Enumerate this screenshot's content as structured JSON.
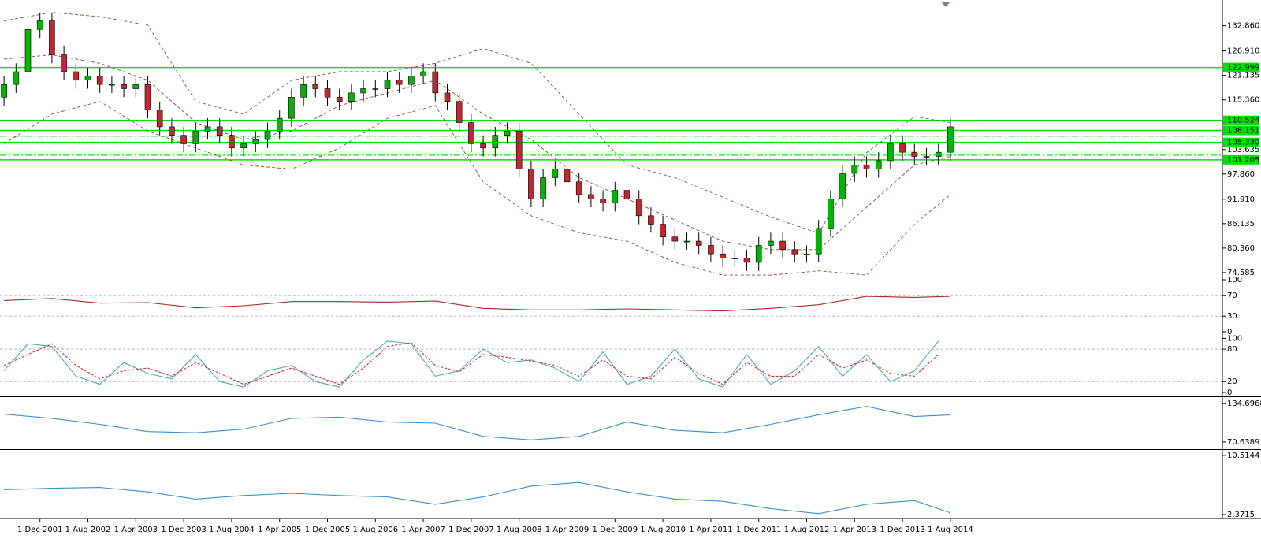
{
  "chart_data": [
    {
      "type": "candlestick",
      "categories": [
        null,
        null,
        null,
        "1 Dec 2001",
        null,
        null,
        null,
        "1 Aug 2002",
        null,
        null,
        null,
        "1 Apr 2003",
        null,
        null,
        null,
        "1 Dec 2003",
        null,
        null,
        null,
        "1 Aug 2004",
        null,
        null,
        null,
        "1 Apr 2005",
        null,
        null,
        null,
        "1 Dec 2005",
        null,
        null,
        null,
        "1 Aug 2006",
        null,
        null,
        null,
        "1 Apr 2007",
        null,
        null,
        null,
        "1 Dec 2007",
        null,
        null,
        null,
        "1 Aug 2008",
        null,
        null,
        null,
        "1 Apr 2009",
        null,
        null,
        null,
        "1 Dec 2009",
        null,
        null,
        null,
        "1 Aug 2010",
        null,
        null,
        null,
        "1 Apr 2011",
        null,
        null,
        null,
        "1 Dec 2011",
        null,
        null,
        null,
        "1 Aug 2012",
        null,
        null,
        null,
        "1 Apr 2013",
        null,
        null,
        null,
        "1 Dec 2013",
        null,
        null,
        null,
        "1 Aug 2014"
      ],
      "open": [
        116,
        119,
        122,
        132,
        134,
        126,
        122,
        120,
        121,
        119,
        119,
        118,
        119,
        113,
        109,
        107,
        105,
        108,
        109,
        107,
        104,
        105,
        106,
        108,
        111,
        116,
        119,
        118,
        116,
        115,
        117,
        118,
        118,
        120,
        119,
        121,
        122,
        117,
        115,
        110,
        105,
        104,
        107,
        108,
        99,
        92,
        97,
        99,
        96,
        93,
        92,
        91,
        94,
        92,
        88,
        86,
        83,
        82,
        82,
        81,
        79,
        78,
        78,
        77,
        81,
        82,
        80,
        79,
        79,
        85,
        92,
        98,
        100,
        99,
        101,
        105,
        103,
        102,
        102,
        103
      ],
      "high": [
        121,
        124,
        134,
        136,
        136,
        128,
        124,
        123,
        123,
        121,
        121,
        121,
        121,
        115,
        111,
        109,
        110,
        111,
        111,
        109,
        107,
        108,
        110,
        113,
        118,
        121,
        121,
        120,
        118,
        119,
        120,
        120,
        122,
        122,
        123,
        124,
        124,
        119,
        117,
        112,
        107,
        109,
        110,
        110,
        101,
        99,
        101,
        101,
        98,
        95,
        94,
        96,
        96,
        94,
        90,
        88,
        85,
        84,
        84,
        83,
        81,
        80,
        80,
        83,
        84,
        84,
        82,
        81,
        87,
        94,
        100,
        102,
        102,
        103,
        107,
        107,
        105,
        104,
        105,
        111
      ],
      "low": [
        114,
        117,
        120,
        130,
        124,
        120,
        118,
        118,
        117,
        117,
        116,
        116,
        111,
        107,
        105,
        103,
        103,
        106,
        105,
        102,
        102,
        103,
        104,
        106,
        109,
        114,
        116,
        114,
        113,
        113,
        115,
        116,
        116,
        117,
        117,
        119,
        115,
        113,
        108,
        103,
        102,
        102,
        105,
        97,
        90,
        90,
        95,
        94,
        91,
        90,
        89,
        89,
        90,
        86,
        84,
        81,
        80,
        80,
        79,
        77,
        76,
        76,
        75,
        75,
        79,
        78,
        77,
        77,
        77,
        83,
        90,
        96,
        97,
        97,
        99,
        101,
        100,
        100,
        100,
        101
      ],
      "close": [
        119,
        122,
        132,
        134,
        126,
        122,
        120,
        121,
        119,
        119,
        118,
        119,
        113,
        109,
        107,
        105,
        108,
        109,
        107,
        104,
        105,
        106,
        108,
        111,
        116,
        119,
        118,
        116,
        115,
        117,
        118,
        118,
        120,
        119,
        121,
        122,
        117,
        115,
        110,
        105,
        104,
        107,
        108,
        99,
        92,
        97,
        99,
        96,
        93,
        92,
        91,
        94,
        92,
        88,
        86,
        83,
        82,
        82,
        81,
        79,
        78,
        78,
        77,
        81,
        82,
        80,
        79,
        79,
        85,
        92,
        98,
        100,
        99,
        101,
        105,
        103,
        102,
        102,
        103,
        109
      ],
      "up_color": "#00b400",
      "down_color": "#c3262d",
      "ylim": [
        73.83,
        138.93
      ],
      "yticks": [
        {
          "value": 132.86,
          "label": "132.860"
        },
        {
          "value": 126.91,
          "label": "126.910"
        },
        121.135,
        {
          "value": 115.36,
          "label": "115.360"
        },
        103.635,
        {
          "value": 97.86,
          "label": "97.860"
        },
        {
          "value": 91.91,
          "label": "91.910"
        },
        86.135,
        {
          "value": 80.36,
          "label": "80.360"
        },
        74.585
      ],
      "bands": {
        "x": [
          0,
          4,
          8,
          12,
          16,
          20,
          24,
          28,
          32,
          36,
          40,
          44,
          48,
          52,
          56,
          60,
          64,
          68,
          72,
          76,
          79
        ],
        "upper": [
          134,
          136,
          135,
          133,
          115,
          112,
          120,
          122,
          122,
          124,
          127.5,
          124,
          112,
          100,
          97,
          92.4,
          87.7,
          83.9,
          102.9,
          111.4,
          110
        ],
        "middle": [
          125,
          126,
          124,
          120,
          110,
          106,
          108,
          114,
          117,
          120,
          112,
          106,
          97,
          92,
          87,
          82,
          80,
          80,
          90,
          100,
          102
        ],
        "lower": [
          105,
          112,
          115,
          108,
          104,
          100,
          99,
          104,
          111,
          114,
          96,
          88,
          84,
          82,
          77,
          74,
          74,
          75,
          74,
          86,
          93
        ],
        "color": "#8b4a3c"
      },
      "levels": [
        122.999,
        110.524,
        108.151,
        {
          "value": 105.33,
          "label": "105.330"
        },
        101.205
      ],
      "dashed_levels": [
        106.8,
        103.3,
        102.3
      ],
      "level_color": "#00e000"
    },
    {
      "type": "line",
      "ylim": [
        -3,
        103
      ],
      "yticks": [
        100,
        70,
        30,
        0
      ],
      "levels": [
        70,
        30
      ],
      "x": [
        0,
        4,
        8,
        12,
        16,
        20,
        24,
        28,
        32,
        36,
        40,
        44,
        48,
        52,
        56,
        60,
        64,
        68,
        72,
        76,
        79
      ],
      "series": [
        {
          "color": "#a52a2a",
          "values": [
            60,
            64,
            55,
            56,
            46,
            50,
            58,
            58,
            57,
            59,
            45,
            42,
            42,
            44,
            42,
            40,
            45,
            52,
            68,
            66,
            68
          ]
        }
      ]
    },
    {
      "type": "line",
      "ylim": [
        -3,
        102
      ],
      "yticks": [
        100,
        80,
        20,
        0
      ],
      "levels": [
        80,
        20
      ],
      "x": [
        0,
        2,
        4,
        6,
        8,
        10,
        12,
        14,
        16,
        18,
        20,
        22,
        24,
        26,
        28,
        30,
        32,
        34,
        36,
        38,
        40,
        42,
        44,
        46,
        48,
        50,
        52,
        54,
        56,
        58,
        60,
        62,
        64,
        66,
        68,
        70,
        72,
        74,
        76,
        78
      ],
      "series": [
        {
          "color": "#4aa8b8",
          "values": [
            40,
            90,
            85,
            30,
            15,
            55,
            35,
            25,
            70,
            20,
            10,
            40,
            50,
            20,
            10,
            60,
            95,
            90,
            30,
            40,
            80,
            55,
            60,
            45,
            20,
            75,
            15,
            30,
            80,
            25,
            10,
            70,
            15,
            40,
            85,
            30,
            70,
            20,
            40,
            95
          ]
        },
        {
          "color": "#d03030",
          "dashed": true,
          "values": [
            50,
            70,
            90,
            50,
            25,
            40,
            45,
            30,
            55,
            35,
            15,
            30,
            45,
            30,
            15,
            45,
            85,
            92,
            50,
            38,
            70,
            65,
            58,
            50,
            30,
            60,
            30,
            25,
            65,
            35,
            15,
            55,
            30,
            30,
            70,
            45,
            60,
            35,
            30,
            70
          ]
        }
      ]
    },
    {
      "type": "line",
      "ylim": [
        61.3,
        144.04
      ],
      "yticks": [
        {
          "value": 134.6968,
          "label": "134.6968"
        },
        {
          "value": 70.6389,
          "label": "70.6389"
        }
      ],
      "x": [
        0,
        4,
        8,
        12,
        16,
        20,
        24,
        28,
        32,
        36,
        40,
        44,
        48,
        52,
        56,
        60,
        64,
        68,
        72,
        76,
        79
      ],
      "series": [
        {
          "color": "#3a8fd0",
          "values": [
            117,
            110,
            100,
            88,
            86,
            92,
            110,
            112,
            104,
            102,
            80,
            74,
            80,
            104,
            90,
            86,
            100,
            116,
            130,
            113,
            116
          ]
        }
      ]
    },
    {
      "type": "line",
      "ylim": [
        2.05,
        11.157
      ],
      "yticks": [
        10.5144,
        2.3715
      ],
      "x": [
        0,
        4,
        8,
        12,
        16,
        20,
        24,
        28,
        32,
        36,
        40,
        44,
        48,
        52,
        56,
        60,
        64,
        68,
        72,
        76,
        79
      ],
      "series": [
        {
          "color": "#3a8fd0",
          "values": [
            5.8,
            6.0,
            6.1,
            5.5,
            4.5,
            5.0,
            5.3,
            5.0,
            4.8,
            3.8,
            4.8,
            6.3,
            6.8,
            5.5,
            4.5,
            4.2,
            3.2,
            2.5,
            3.8,
            4.3,
            2.6
          ]
        }
      ]
    }
  ]
}
